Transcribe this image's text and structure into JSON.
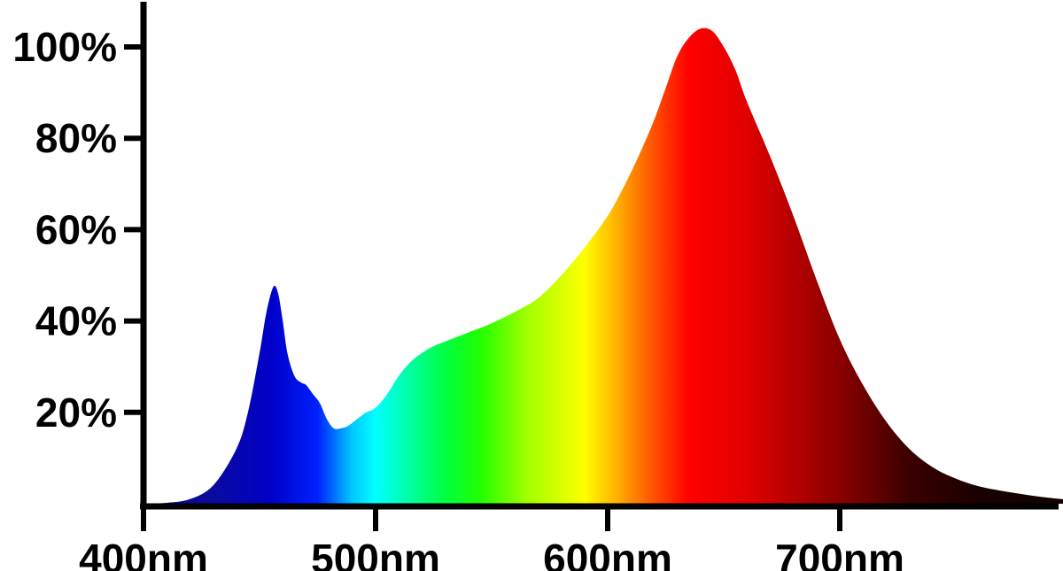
{
  "chart_data": {
    "type": "area",
    "title": "",
    "xlabel": "",
    "ylabel": "",
    "xlim": [
      400,
      800
    ],
    "ylim": [
      0,
      110
    ],
    "x_ticks": [
      400,
      500,
      600,
      700
    ],
    "x_tick_labels": [
      "400nm",
      "500nm",
      "600nm",
      "700nm"
    ],
    "y_ticks": [
      20,
      40,
      60,
      80,
      100
    ],
    "y_tick_labels": [
      "20%",
      "40%",
      "60%",
      "80%",
      "100%"
    ],
    "grid": false,
    "legend": "none",
    "fill": "visible-spectrum gradient",
    "series": [
      {
        "x": [
          400,
          410,
          420,
          430,
          440,
          445,
          450,
          453,
          456,
          458,
          460,
          462,
          465,
          468,
          470,
          473,
          476,
          479,
          482,
          485,
          488,
          492,
          496,
          500,
          505,
          510,
          515,
          520,
          525,
          530,
          540,
          550,
          560,
          570,
          580,
          590,
          600,
          605,
          610,
          615,
          620,
          625,
          630,
          635,
          640,
          645,
          650,
          655,
          660,
          670,
          680,
          690,
          700,
          710,
          720,
          730,
          740,
          750,
          760,
          770,
          780,
          790,
          800
        ],
        "values": [
          0,
          0.2,
          1,
          4,
          12,
          20,
          33,
          42,
          47.5,
          46,
          40,
          33,
          28,
          26.5,
          26,
          24,
          22,
          18.5,
          16.5,
          16.5,
          17,
          18.5,
          20,
          21,
          24,
          28,
          31,
          33,
          34.5,
          35.5,
          37.5,
          39.5,
          42,
          45,
          50,
          56,
          63,
          67.5,
          72.5,
          78,
          84,
          91,
          98,
          102,
          104,
          103.5,
          100,
          95,
          88,
          76,
          63,
          49,
          36,
          26,
          18,
          12,
          8,
          5.5,
          3.8,
          2.8,
          2.0,
          1.3,
          0.8
        ]
      }
    ],
    "spectrum_colors": [
      {
        "nm": 400,
        "color": "#0a0a7a"
      },
      {
        "nm": 430,
        "color": "#0a0aa0"
      },
      {
        "nm": 455,
        "color": "#0000c8"
      },
      {
        "nm": 475,
        "color": "#0020ff"
      },
      {
        "nm": 490,
        "color": "#00c8ff"
      },
      {
        "nm": 500,
        "color": "#00ffff"
      },
      {
        "nm": 515,
        "color": "#00ffa0"
      },
      {
        "nm": 530,
        "color": "#00ff40"
      },
      {
        "nm": 545,
        "color": "#20ff00"
      },
      {
        "nm": 565,
        "color": "#a0ff00"
      },
      {
        "nm": 590,
        "color": "#ffff00"
      },
      {
        "nm": 605,
        "color": "#ffaa00"
      },
      {
        "nm": 620,
        "color": "#ff5000"
      },
      {
        "nm": 635,
        "color": "#ff0000"
      },
      {
        "nm": 660,
        "color": "#e00000"
      },
      {
        "nm": 700,
        "color": "#8a0000"
      },
      {
        "nm": 730,
        "color": "#3a0000"
      },
      {
        "nm": 760,
        "color": "#1a0000"
      },
      {
        "nm": 800,
        "color": "#100000"
      }
    ],
    "axis_color": "#000000"
  }
}
